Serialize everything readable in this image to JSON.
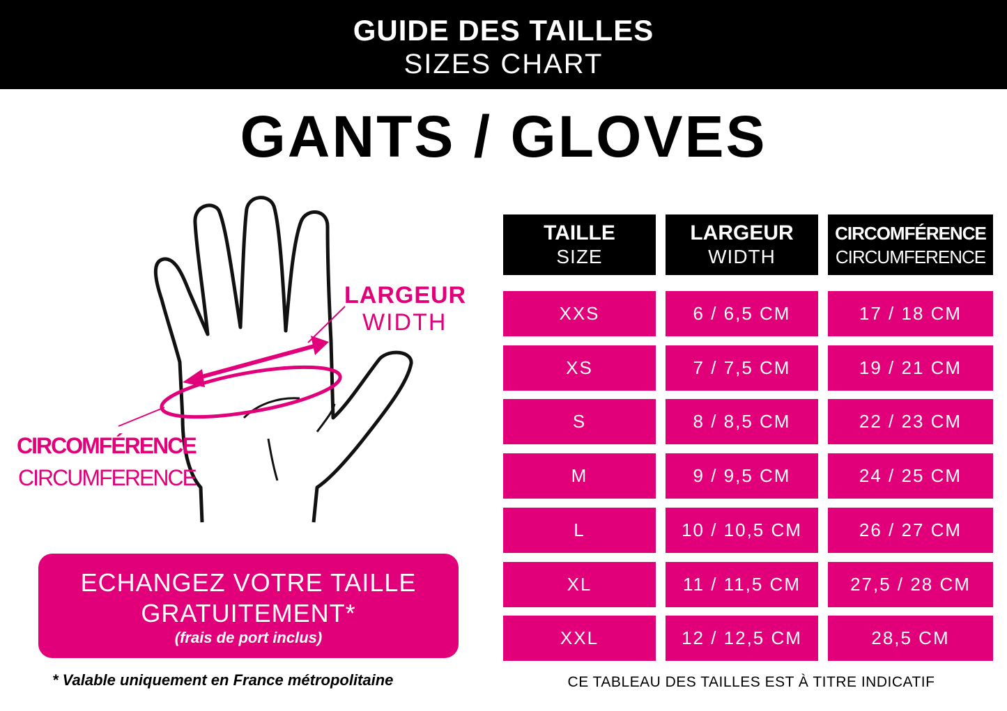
{
  "header": {
    "title": "GUIDE DES TAILLES",
    "subtitle": "SIZES CHART"
  },
  "main_title": "GANTS / GLOVES",
  "colors": {
    "accent": "#E2007A",
    "header_bg": "#000000"
  },
  "diagram": {
    "icon": "hand-outline",
    "width_label": {
      "fr": "LARGEUR",
      "en": "WIDTH"
    },
    "circumference_label": {
      "fr": "CIRCOMFÉRENCE",
      "en": "CIRCUMFERENCE"
    }
  },
  "table": {
    "columns": [
      {
        "fr": "TAILLE",
        "en": "SIZE"
      },
      {
        "fr": "LARGEUR",
        "en": "WIDTH"
      },
      {
        "fr": "CIRCOMFÉRENCE",
        "en": "CIRCUMFERENCE"
      }
    ],
    "rows": [
      [
        "XXS",
        "6 / 6,5 CM",
        "17 / 18 CM"
      ],
      [
        "XS",
        "7 / 7,5 CM",
        "19 / 21 CM"
      ],
      [
        "S",
        "8 / 8,5 CM",
        "22 / 23 CM"
      ],
      [
        "M",
        "9 / 9,5 CM",
        "24 / 25 CM"
      ],
      [
        "L",
        "10 / 10,5 CM",
        "26 / 27 CM"
      ],
      [
        "XL",
        "11 / 11,5 CM",
        "27,5 / 28 CM"
      ],
      [
        "XXL",
        "12 / 12,5 CM",
        "28,5 CM"
      ]
    ]
  },
  "promo": {
    "line1": "ECHANGEZ VOTRE TAILLE",
    "line2": "GRATUITEMENT*",
    "line3": "(frais de port inclus)"
  },
  "footnote": "* Valable uniquement en France métropolitaine",
  "disclaimer": "CE TABLEAU DES TAILLES EST À TITRE INDICATIF"
}
